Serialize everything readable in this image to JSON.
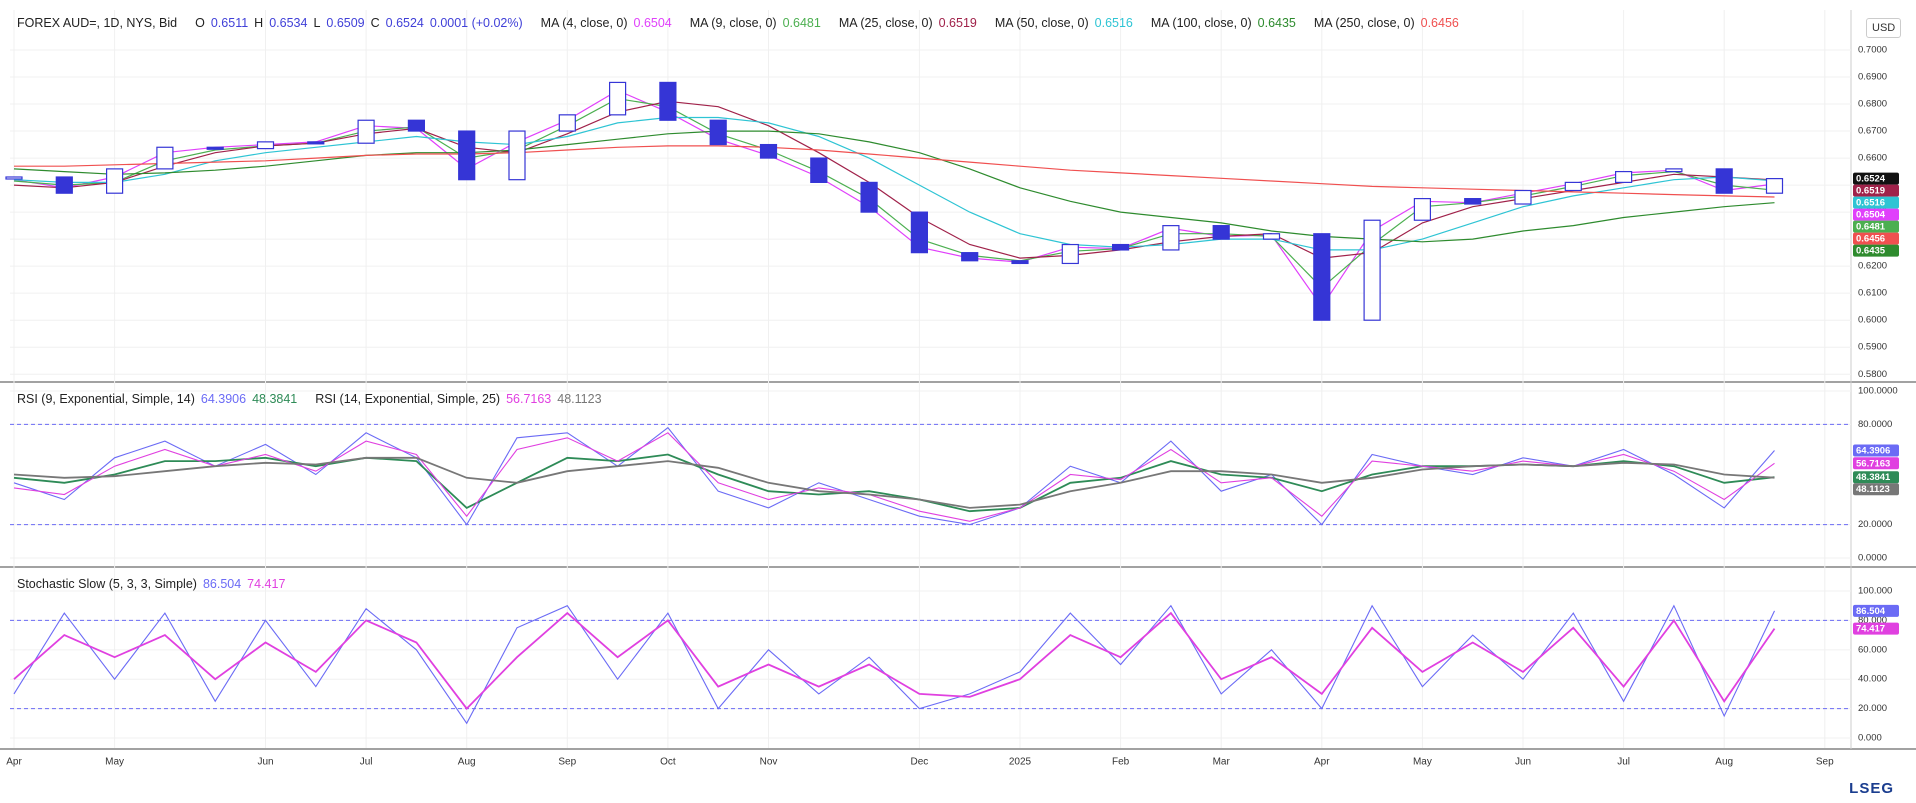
{
  "chart_data": [
    {
      "type": "candlestick",
      "symbol": "FOREX AUD=, 1D, NYS, Bid",
      "ohlc_labels": [
        "O",
        "H",
        "L",
        "C"
      ],
      "ohlc": [
        0.6511,
        0.6534,
        0.6509,
        0.6524
      ],
      "change": "0.0001 (+0.02%)",
      "currency": "USD",
      "close_color": "#3535d6",
      "close": [
        0.653,
        0.647,
        0.656,
        0.664,
        0.6635,
        0.666,
        0.6655,
        0.674,
        0.67,
        0.652,
        0.67,
        0.676,
        0.688,
        0.674,
        0.665,
        0.66,
        0.651,
        0.64,
        0.625,
        0.622,
        0.621,
        0.628,
        0.626,
        0.635,
        0.63,
        0.632,
        0.6,
        0.637,
        0.645,
        0.643,
        0.648,
        0.651,
        0.655,
        0.656,
        0.647,
        0.6524,
        null
      ],
      "series": [
        {
          "name": "MA (4, close, 0)",
          "color": "#e040fb",
          "values": [
            0.652,
            0.649,
            0.653,
            0.662,
            0.664,
            0.665,
            0.666,
            0.672,
            0.671,
            0.656,
            0.666,
            0.674,
            0.685,
            0.677,
            0.667,
            0.661,
            0.653,
            0.642,
            0.627,
            0.623,
            0.6215,
            0.627,
            0.6265,
            0.634,
            0.631,
            0.6315,
            0.605,
            0.633,
            0.644,
            0.6435,
            0.647,
            0.6505,
            0.6545,
            0.6555,
            0.648,
            0.6504,
            null
          ]
        },
        {
          "name": "MA (9, close, 0)",
          "color": "#4caf50",
          "values": [
            0.6515,
            0.65,
            0.651,
            0.659,
            0.663,
            0.6645,
            0.6655,
            0.67,
            0.6715,
            0.66,
            0.663,
            0.672,
            0.682,
            0.679,
            0.669,
            0.663,
            0.655,
            0.645,
            0.63,
            0.624,
            0.622,
            0.6255,
            0.6265,
            0.632,
            0.632,
            0.631,
            0.612,
            0.628,
            0.642,
            0.6435,
            0.646,
            0.6495,
            0.6535,
            0.655,
            0.65,
            0.6481,
            null
          ]
        },
        {
          "name": "MA (25, close, 0)",
          "color": "#a0224a",
          "values": [
            0.65,
            0.649,
            0.651,
            0.657,
            0.662,
            0.6645,
            0.6655,
            0.669,
            0.671,
            0.664,
            0.662,
            0.669,
            0.677,
            0.681,
            0.679,
            0.672,
            0.662,
            0.651,
            0.638,
            0.628,
            0.623,
            0.624,
            0.626,
            0.629,
            0.631,
            0.632,
            0.623,
            0.625,
            0.636,
            0.642,
            0.645,
            0.648,
            0.651,
            0.654,
            0.653,
            0.6519,
            null
          ]
        },
        {
          "name": "MA (50, close, 0)",
          "color": "#2ec4d4",
          "values": [
            0.652,
            0.651,
            0.651,
            0.654,
            0.659,
            0.662,
            0.664,
            0.666,
            0.668,
            0.666,
            0.665,
            0.668,
            0.673,
            0.675,
            0.675,
            0.673,
            0.668,
            0.66,
            0.65,
            0.64,
            0.632,
            0.628,
            0.627,
            0.628,
            0.63,
            0.63,
            0.626,
            0.626,
            0.63,
            0.636,
            0.642,
            0.646,
            0.649,
            0.652,
            0.653,
            0.6516,
            null
          ]
        },
        {
          "name": "MA (100, close, 0)",
          "color": "#2e8b2e",
          "values": [
            0.656,
            0.655,
            0.654,
            0.6545,
            0.6555,
            0.657,
            0.659,
            0.661,
            0.662,
            0.662,
            0.663,
            0.665,
            0.667,
            0.669,
            0.67,
            0.67,
            0.669,
            0.666,
            0.662,
            0.656,
            0.649,
            0.644,
            0.64,
            0.638,
            0.636,
            0.633,
            0.631,
            0.63,
            0.629,
            0.63,
            0.633,
            0.635,
            0.638,
            0.64,
            0.642,
            0.6435,
            null
          ]
        },
        {
          "name": "MA (250, close, 0)",
          "color": "#f05050",
          "values": [
            0.657,
            0.657,
            0.6575,
            0.658,
            0.6585,
            0.659,
            0.66,
            0.661,
            0.6615,
            0.6615,
            0.662,
            0.663,
            0.664,
            0.6645,
            0.6645,
            0.664,
            0.663,
            0.6615,
            0.66,
            0.6585,
            0.657,
            0.6555,
            0.6545,
            0.6535,
            0.6525,
            0.6515,
            0.6505,
            0.6495,
            0.649,
            0.6485,
            0.648,
            0.6475,
            0.647,
            0.6465,
            0.646,
            0.6456,
            null
          ]
        }
      ],
      "ylim": [
        0.5775,
        0.7148
      ],
      "yticks": [
        {
          "value": 0.58,
          "label": "0.5800"
        },
        {
          "value": 0.59,
          "label": "0.5900"
        },
        {
          "value": 0.6,
          "label": "0.6000"
        },
        {
          "value": 0.61,
          "label": "0.6100"
        },
        {
          "value": 0.62,
          "label": "0.6200"
        },
        {
          "value": 0.63,
          "label": "0.6300"
        },
        {
          "value": 0.64,
          "label": "0.6400"
        },
        {
          "value": 0.65,
          "label": "0.6500"
        },
        {
          "value": 0.66,
          "label": "0.6600"
        },
        {
          "value": 0.67,
          "label": "0.6700"
        },
        {
          "value": 0.68,
          "label": "0.6800"
        },
        {
          "value": 0.69,
          "label": "0.6900"
        },
        {
          "value": 0.7,
          "label": "0.7000"
        }
      ],
      "grid": true
    },
    {
      "type": "oscillator",
      "groups": [
        {
          "name": "RSI (9, Exponential, Simple, 14)",
          "series": [
            {
              "color": "#6b6bf5",
              "values": [
                45,
                35,
                60,
                70,
                55,
                68,
                50,
                75,
                60,
                20,
                72,
                75,
                55,
                78,
                40,
                30,
                45,
                35,
                25,
                20,
                30,
                55,
                45,
                70,
                40,
                50,
                20,
                62,
                55,
                50,
                60,
                55,
                65,
                50,
                30,
                64.3906,
                null
              ]
            },
            {
              "color": "#2e8b57",
              "values": [
                48,
                45,
                50,
                58,
                58,
                60,
                55,
                60,
                58,
                30,
                45,
                60,
                58,
                62,
                50,
                40,
                38,
                40,
                35,
                28,
                30,
                45,
                48,
                58,
                50,
                48,
                40,
                50,
                55,
                55,
                56,
                55,
                58,
                55,
                45,
                48.3841,
                null
              ]
            }
          ]
        },
        {
          "name": "RSI (14, Exponential, Simple, 25)",
          "series": [
            {
              "color": "#e040e0",
              "values": [
                42,
                38,
                55,
                65,
                55,
                62,
                52,
                70,
                62,
                25,
                65,
                72,
                58,
                75,
                45,
                35,
                42,
                38,
                28,
                22,
                30,
                50,
                47,
                65,
                45,
                48,
                25,
                58,
                55,
                52,
                58,
                55,
                62,
                52,
                35,
                56.7163,
                null
              ]
            },
            {
              "color": "#777777",
              "values": [
                50,
                48,
                49,
                52,
                55,
                57,
                56,
                60,
                60,
                48,
                45,
                52,
                55,
                58,
                54,
                45,
                40,
                38,
                35,
                30,
                32,
                40,
                45,
                52,
                52,
                50,
                45,
                48,
                53,
                55,
                56,
                55,
                57,
                56,
                50,
                48.1123,
                null
              ]
            }
          ]
        }
      ],
      "levels": [
        20,
        80
      ],
      "level_color": "#6b6bf5",
      "ylim": [
        -4.8,
        104.2
      ],
      "yticks": [
        {
          "value": 0,
          "label": "0.0000"
        },
        {
          "value": 20,
          "label": "20.0000"
        },
        {
          "value": 80,
          "label": "80.0000"
        },
        {
          "value": 100,
          "label": "100.0000"
        }
      ],
      "grid": true
    },
    {
      "type": "oscillator",
      "groups": [
        {
          "name": "Stochastic Slow (5, 3, 3, Simple)",
          "series": [
            {
              "color": "#6b6bf5",
              "values": [
                30,
                85,
                40,
                85,
                25,
                80,
                35,
                88,
                60,
                10,
                75,
                90,
                40,
                85,
                20,
                60,
                30,
                55,
                20,
                30,
                45,
                85,
                50,
                90,
                30,
                60,
                20,
                90,
                35,
                70,
                40,
                85,
                25,
                90,
                15,
                86.504,
                null
              ]
            },
            {
              "color": "#e040e0",
              "values": [
                40,
                70,
                55,
                70,
                40,
                65,
                45,
                80,
                65,
                20,
                55,
                85,
                55,
                80,
                35,
                50,
                35,
                50,
                30,
                28,
                40,
                70,
                55,
                85,
                40,
                55,
                30,
                75,
                45,
                65,
                45,
                75,
                35,
                80,
                25,
                74.417,
                null
              ]
            }
          ]
        }
      ],
      "levels": [
        20,
        80
      ],
      "level_color": "#6b6bf5",
      "ylim": [
        -6.8,
        115
      ],
      "yticks": [
        {
          "value": 0,
          "label": "0.000"
        },
        {
          "value": 20,
          "label": "20.000"
        },
        {
          "value": 40,
          "label": "40.000"
        },
        {
          "value": 60,
          "label": "60.000"
        },
        {
          "value": 80,
          "label": "80.000"
        },
        {
          "value": 100,
          "label": "100.000"
        }
      ],
      "grid": true,
      "categories": [
        "Apr",
        null,
        "May",
        null,
        null,
        "Jun",
        null,
        "Jul",
        null,
        "Aug",
        null,
        "Sep",
        null,
        "Oct",
        null,
        "Nov",
        null,
        null,
        "Dec",
        null,
        "2025",
        null,
        "Feb",
        null,
        "Mar",
        null,
        "Apr",
        null,
        "May",
        null,
        "Jun",
        null,
        "Jul",
        null,
        "Aug",
        null,
        "Sep"
      ]
    }
  ],
  "logo": "LSEG"
}
